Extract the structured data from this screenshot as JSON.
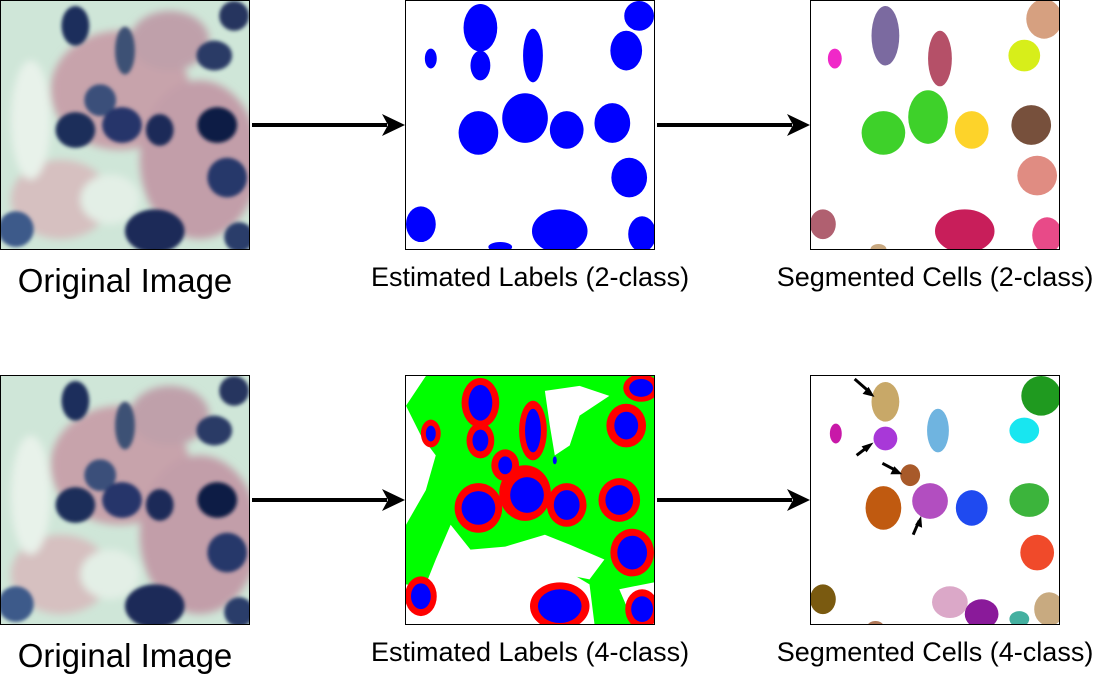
{
  "rows": [
    {
      "original_caption": "Original Image",
      "labels_caption": "Estimated Labels (2-class)",
      "cells_caption": "Segmented Cells (2-class)"
    },
    {
      "original_caption": "Original Image",
      "labels_caption": "Estimated Labels (4-class)",
      "cells_caption": "Segmented Cells (4-class)"
    }
  ],
  "colors": {
    "nucleus_blue": "#0000ff",
    "boundary_red": "#ff0000",
    "cytoplasm_green": "#00ff00",
    "background_white": "#ffffff",
    "stain_blue": "#2b3a66",
    "tissue_pink": "#c9a9ac",
    "tissue_mint": "#cfe6d8"
  }
}
